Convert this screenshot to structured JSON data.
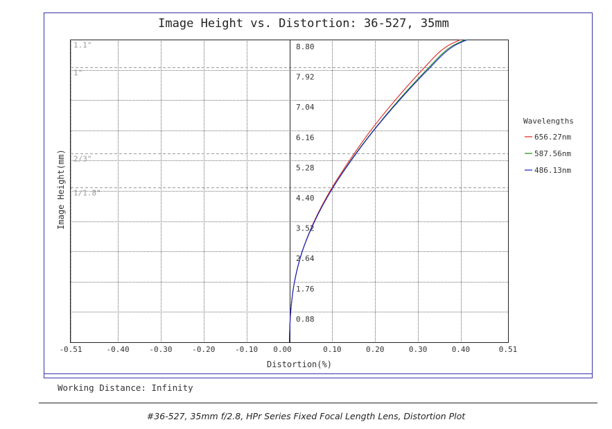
{
  "chart_data": {
    "type": "line",
    "title": "Image Height vs. Distortion: 36-527, 35mm",
    "xlabel": "Distortion(%)",
    "ylabel": "Image Height(mm)",
    "xlim": [
      -0.51,
      0.51
    ],
    "ylim": [
      0,
      8.8
    ],
    "x_ticks": [
      "-0.51",
      "-0.40",
      "-0.30",
      "-0.20",
      "-0.10",
      "0.00",
      "0.10",
      "0.20",
      "0.30",
      "0.40",
      "0.51"
    ],
    "x_tick_values": [
      -0.51,
      -0.4,
      -0.3,
      -0.2,
      -0.1,
      0.0,
      0.1,
      0.2,
      0.3,
      0.4,
      0.51
    ],
    "y_ticks": [
      "0.88",
      "1.76",
      "2.64",
      "3.52",
      "4.40",
      "5.28",
      "6.16",
      "7.04",
      "7.92",
      "8.80"
    ],
    "y_tick_values": [
      0.88,
      1.76,
      2.64,
      3.52,
      4.4,
      5.28,
      6.16,
      7.04,
      7.92,
      8.8
    ],
    "grid": true,
    "sensor_lines": [
      {
        "label": "1.1\"",
        "y": 8.8
      },
      {
        "label": "1\"",
        "y": 8.0
      },
      {
        "label": "2/3\"",
        "y": 5.5
      },
      {
        "label": "1/1.8\"",
        "y": 4.5
      }
    ],
    "legend_title": "Wavelengths",
    "legend_position": "right",
    "series": [
      {
        "name": "656.27nm",
        "color": "#e02020",
        "points": [
          [
            0,
            0
          ],
          [
            0.003,
            0.88
          ],
          [
            0.012,
            1.76
          ],
          [
            0.03,
            2.64
          ],
          [
            0.058,
            3.52
          ],
          [
            0.095,
            4.4
          ],
          [
            0.14,
            5.28
          ],
          [
            0.19,
            6.16
          ],
          [
            0.247,
            7.04
          ],
          [
            0.31,
            7.92
          ],
          [
            0.367,
            8.6
          ],
          [
            0.443,
            9.0
          ]
        ]
      },
      {
        "name": "587.56nm",
        "color": "#1a8a1a",
        "points": [
          [
            0,
            0
          ],
          [
            0.003,
            0.88
          ],
          [
            0.012,
            1.76
          ],
          [
            0.03,
            2.64
          ],
          [
            0.059,
            3.52
          ],
          [
            0.097,
            4.4
          ],
          [
            0.143,
            5.28
          ],
          [
            0.196,
            6.16
          ],
          [
            0.255,
            7.04
          ],
          [
            0.32,
            7.92
          ],
          [
            0.378,
            8.6
          ],
          [
            0.455,
            9.0
          ]
        ]
      },
      {
        "name": "486.13nm",
        "color": "#1a1acc",
        "points": [
          [
            0,
            0
          ],
          [
            0.003,
            0.88
          ],
          [
            0.012,
            1.76
          ],
          [
            0.03,
            2.64
          ],
          [
            0.059,
            3.52
          ],
          [
            0.097,
            4.4
          ],
          [
            0.144,
            5.28
          ],
          [
            0.197,
            6.16
          ],
          [
            0.257,
            7.04
          ],
          [
            0.323,
            7.92
          ],
          [
            0.382,
            8.6
          ],
          [
            0.46,
            9.0
          ]
        ]
      }
    ]
  },
  "footer": {
    "working_distance": "Working Distance: Infinity"
  },
  "caption": "#36-527, 35mm f/2.8, HPr Series Fixed Focal Length Lens, Distortion Plot"
}
